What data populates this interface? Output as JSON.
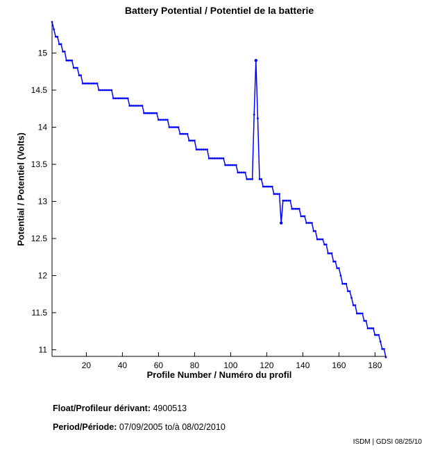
{
  "title": "Battery Potential / Potentiel de la batterie",
  "chart_data": {
    "type": "line",
    "title": "Battery Potential / Potentiel de la batterie",
    "xlabel": "Profile Number / Numéro du profil",
    "ylabel": "Potential / Potentiel (Volts)",
    "series_name": "battery-potential",
    "line_color": "#0000ff",
    "marker": "dot",
    "grid": false,
    "legend": "none",
    "xlim": [
      0,
      188
    ],
    "ylim": [
      10.9,
      15.45
    ],
    "xticks": [
      20,
      40,
      60,
      80,
      100,
      120,
      140,
      160,
      180
    ],
    "yticks": [
      11,
      11.5,
      12,
      12.5,
      13,
      13.5,
      14,
      14.5,
      15
    ],
    "x_is_profile_number": true,
    "profile_range": [
      1,
      186
    ],
    "step_breakpoints_note": "pairs [profile, volts]; voltage holds until next breakpoint (step curve), markers at every integer profile",
    "steps": [
      [
        1,
        15.42
      ],
      [
        2,
        15.32
      ],
      [
        3,
        15.22
      ],
      [
        5,
        15.12
      ],
      [
        7,
        15.02
      ],
      [
        9,
        14.9
      ],
      [
        13,
        14.8
      ],
      [
        16,
        14.7
      ],
      [
        18,
        14.59
      ],
      [
        27,
        14.5
      ],
      [
        35,
        14.39
      ],
      [
        44,
        14.29
      ],
      [
        52,
        14.19
      ],
      [
        60,
        14.1
      ],
      [
        66,
        14.0
      ],
      [
        72,
        13.91
      ],
      [
        77,
        13.82
      ],
      [
        81,
        13.7
      ],
      [
        88,
        13.58
      ],
      [
        97,
        13.49
      ],
      [
        104,
        13.39
      ],
      [
        109,
        13.3
      ],
      [
        113,
        14.17
      ],
      [
        114,
        14.9
      ],
      [
        115,
        14.12
      ],
      [
        116,
        13.3
      ],
      [
        118,
        13.2
      ],
      [
        124,
        13.1
      ],
      [
        128,
        12.71
      ],
      [
        129,
        13.01
      ],
      [
        134,
        12.9
      ],
      [
        139,
        12.8
      ],
      [
        142,
        12.71
      ],
      [
        146,
        12.6
      ],
      [
        148,
        12.49
      ],
      [
        152,
        12.42
      ],
      [
        154,
        12.3
      ],
      [
        157,
        12.19
      ],
      [
        159,
        12.1
      ],
      [
        161,
        12.0
      ],
      [
        162,
        11.89
      ],
      [
        165,
        11.79
      ],
      [
        167,
        11.7
      ],
      [
        168,
        11.6
      ],
      [
        170,
        11.49
      ],
      [
        174,
        11.39
      ],
      [
        176,
        11.29
      ],
      [
        180,
        11.2
      ],
      [
        183,
        11.11
      ],
      [
        184,
        11.01
      ],
      [
        186,
        10.9
      ]
    ],
    "annotations": {
      "spike_peak": {
        "profile": 114,
        "volts": 14.9
      },
      "dip_low": {
        "profile": 128,
        "volts": 12.71
      }
    }
  },
  "footer": {
    "float_label": "Float/Profileur dérivant:",
    "float_value": " 4900513",
    "period_label": "Period/Période:",
    "period_value": " 07/09/2005  to/à  08/02/2010",
    "credit": "ISDM | GDSI 08/25/10"
  }
}
